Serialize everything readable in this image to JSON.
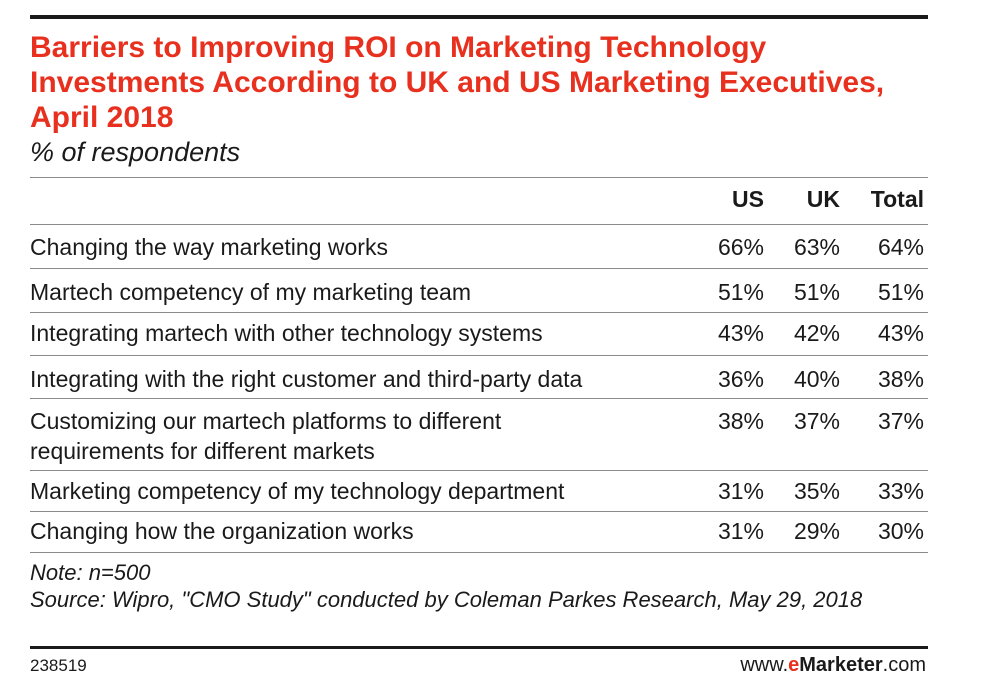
{
  "chart_data": {
    "type": "table",
    "title": "Barriers to Improving ROI on Marketing Technology Investments According to UK and US Marketing Executives, April 2018",
    "subtitle": "% of respondents",
    "columns": [
      "US",
      "UK",
      "Total"
    ],
    "rows": [
      {
        "label": "Changing the way marketing works",
        "values": [
          "66%",
          "63%",
          "64%"
        ]
      },
      {
        "label": "Martech competency of my marketing team",
        "values": [
          "51%",
          "51%",
          "51%"
        ]
      },
      {
        "label": "Integrating martech with other technology systems",
        "values": [
          "43%",
          "42%",
          "43%"
        ]
      },
      {
        "label": "Integrating with the right customer and third-party data",
        "values": [
          "36%",
          "40%",
          "38%"
        ]
      },
      {
        "label": "Customizing our martech platforms to different requirements for different markets",
        "values": [
          "38%",
          "37%",
          "37%"
        ]
      },
      {
        "label": "Marketing competency of my technology department",
        "values": [
          "31%",
          "35%",
          "33%"
        ]
      },
      {
        "label": "Changing how the organization works",
        "values": [
          "31%",
          "29%",
          "30%"
        ]
      }
    ],
    "note": "Note: n=500",
    "source": "Source: Wipro, \"CMO Study\" conducted by Coleman Parkes Research, May 29, 2018",
    "chart_id": "238519",
    "brand": {
      "prefix": "www.",
      "e": "e",
      "marketer": "Marketer",
      "suffix": ".com"
    }
  },
  "colors": {
    "title": "#e8301f",
    "text": "#1a1a1a",
    "rule": "#8a8a8a"
  }
}
